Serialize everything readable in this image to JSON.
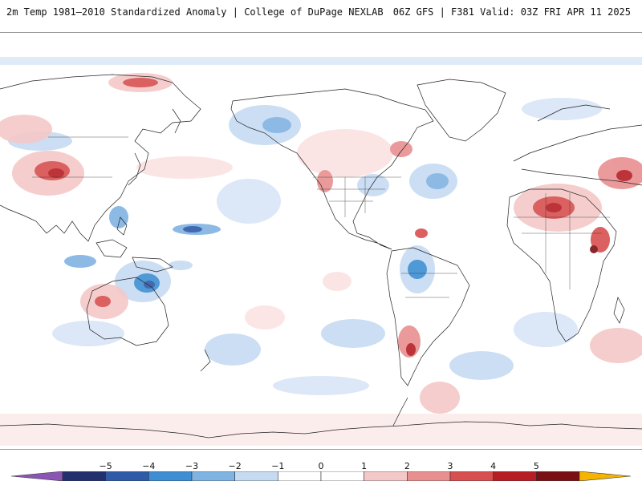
{
  "header": {
    "title": "2m Temp 1981–2010 Standardized Anomaly | College of DuPage NEXLAB",
    "run_info": "06Z GFS | F381 Valid: 03Z FRI APR 11 2025"
  },
  "map": {
    "projection": "global equirectangular, Pacific-centered",
    "field": "2m temperature standardized anomaly"
  },
  "colorbar": {
    "ticks": [
      "−5",
      "−4",
      "−3",
      "−2",
      "−1",
      "0",
      "1",
      "2",
      "3",
      "4",
      "5"
    ],
    "colors": [
      "#8a55b5",
      "#23306e",
      "#2e5aa8",
      "#3d8ed3",
      "#7fb3e2",
      "#c6dbf2",
      "#ffffff",
      "#ffffff",
      "#f4c8c8",
      "#e89090",
      "#d84f4f",
      "#b51e24",
      "#7a0f14",
      "#f5b400"
    ]
  }
}
